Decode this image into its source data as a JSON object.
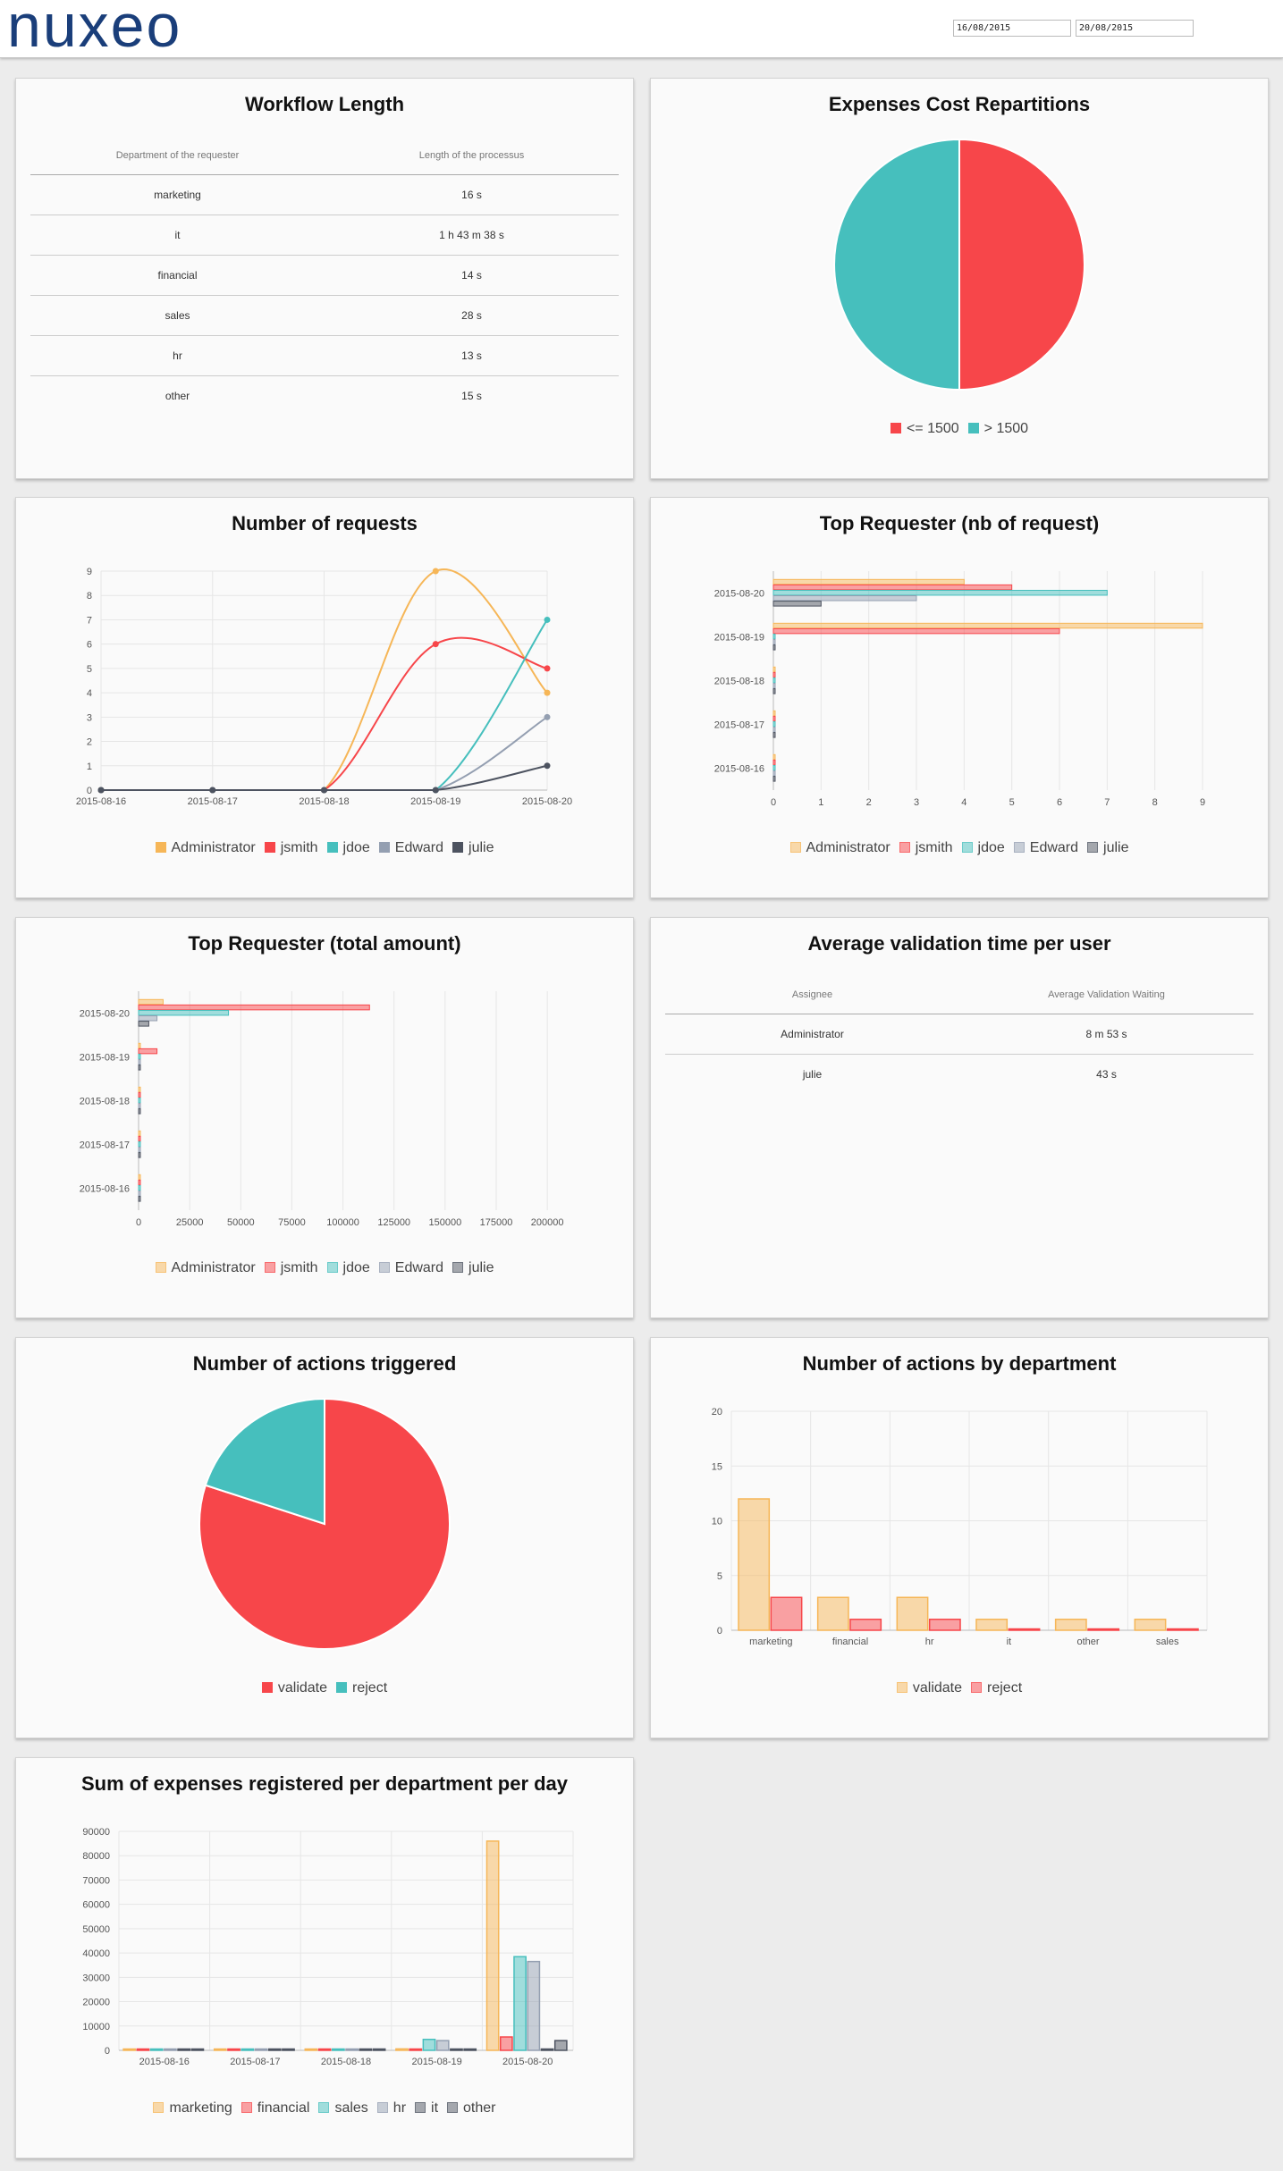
{
  "header": {
    "logo_text": "nuxeo",
    "date_from": "16/08/2015",
    "date_to": "20/08/2015"
  },
  "colors": {
    "orange": "#f6b657",
    "red": "#f7464a",
    "teal": "#46bfbd",
    "gray": "#949fb1",
    "dark": "#4d5360",
    "brand": "#1a3e7a"
  },
  "workflow_length": {
    "title": "Workflow Length",
    "columns": [
      "Department of the requester",
      "Length of the processus"
    ],
    "rows": [
      [
        "marketing",
        "16 s"
      ],
      [
        "it",
        "1 h 43 m 38 s"
      ],
      [
        "financial",
        "14 s"
      ],
      [
        "sales",
        "28 s"
      ],
      [
        "hr",
        "13 s"
      ],
      [
        "other",
        "15 s"
      ]
    ]
  },
  "avg_validation": {
    "title": "Average validation time per user",
    "columns": [
      "Assignee",
      "Average Validation Waiting"
    ],
    "rows": [
      [
        "Administrator",
        "8 m 53 s"
      ],
      [
        "julie",
        "43 s"
      ]
    ]
  },
  "chart_data": [
    {
      "id": "expenses_cost",
      "type": "pie",
      "title": "Expenses Cost Repartitions",
      "labels": [
        "<= 1500",
        "> 1500"
      ],
      "values": [
        50,
        50
      ],
      "colors": [
        "#f7464a",
        "#46bfbd"
      ],
      "legend": "bottom"
    },
    {
      "id": "nb_requests",
      "type": "line",
      "title": "Number of requests",
      "categories": [
        "2015-08-16",
        "2015-08-17",
        "2015-08-18",
        "2015-08-19",
        "2015-08-20"
      ],
      "ylim": [
        0,
        9
      ],
      "y_ticks": [
        0,
        1,
        2,
        3,
        4,
        5,
        6,
        7,
        8,
        9
      ],
      "series": [
        {
          "name": "Administrator",
          "values": [
            0,
            0,
            0,
            9,
            4
          ],
          "color": "#f6b657"
        },
        {
          "name": "jsmith",
          "values": [
            0,
            0,
            0,
            6,
            5
          ],
          "color": "#f7464a"
        },
        {
          "name": "jdoe",
          "values": [
            0,
            0,
            0,
            0,
            7
          ],
          "color": "#46bfbd"
        },
        {
          "name": "Edward",
          "values": [
            0,
            0,
            0,
            0,
            3
          ],
          "color": "#949fb1"
        },
        {
          "name": "julie",
          "values": [
            0,
            0,
            0,
            0,
            1
          ],
          "color": "#4d5360"
        }
      ],
      "grid": true,
      "legend": "bottom"
    },
    {
      "id": "top_req_nb",
      "type": "bar",
      "orientation": "horizontal",
      "title": "Top Requester (nb of request)",
      "categories": [
        "2015-08-20",
        "2015-08-19",
        "2015-08-18",
        "2015-08-17",
        "2015-08-16"
      ],
      "xlim": [
        0,
        9
      ],
      "x_ticks": [
        0,
        1,
        2,
        3,
        4,
        5,
        6,
        7,
        8,
        9
      ],
      "series": [
        {
          "name": "Administrator",
          "values": [
            4,
            9,
            0,
            0,
            0
          ],
          "color": "#f6b657"
        },
        {
          "name": "jsmith",
          "values": [
            5,
            6,
            0,
            0,
            0
          ],
          "color": "#f7464a"
        },
        {
          "name": "jdoe",
          "values": [
            7,
            0,
            0,
            0,
            0
          ],
          "color": "#46bfbd"
        },
        {
          "name": "Edward",
          "values": [
            3,
            0,
            0,
            0,
            0
          ],
          "color": "#949fb1"
        },
        {
          "name": "julie",
          "values": [
            1,
            0,
            0,
            0,
            0
          ],
          "color": "#4d5360"
        }
      ],
      "grid": true,
      "legend": "bottom"
    },
    {
      "id": "top_req_amount",
      "type": "bar",
      "orientation": "horizontal",
      "title": "Top Requester (total amount)",
      "categories": [
        "2015-08-20",
        "2015-08-19",
        "2015-08-18",
        "2015-08-17",
        "2015-08-16"
      ],
      "xlim": [
        0,
        210000
      ],
      "x_ticks": [
        0,
        25000,
        50000,
        75000,
        100000,
        125000,
        150000,
        175000,
        200000
      ],
      "series": [
        {
          "name": "Administrator",
          "values": [
            12000,
            500,
            0,
            0,
            0
          ],
          "color": "#f6b657"
        },
        {
          "name": "jsmith",
          "values": [
            113000,
            9000,
            0,
            0,
            0
          ],
          "color": "#f7464a"
        },
        {
          "name": "jdoe",
          "values": [
            44000,
            0,
            0,
            0,
            0
          ],
          "color": "#46bfbd"
        },
        {
          "name": "Edward",
          "values": [
            9000,
            0,
            0,
            0,
            0
          ],
          "color": "#949fb1"
        },
        {
          "name": "julie",
          "values": [
            5000,
            0,
            0,
            0,
            0
          ],
          "color": "#4d5360"
        }
      ],
      "grid": true,
      "legend": "bottom"
    },
    {
      "id": "actions_triggered",
      "type": "pie",
      "title": "Number of actions triggered",
      "labels": [
        "validate",
        "reject"
      ],
      "values": [
        20,
        5
      ],
      "colors": [
        "#f7464a",
        "#46bfbd"
      ],
      "legend": "bottom"
    },
    {
      "id": "actions_by_dept",
      "type": "bar",
      "title": "Number of actions by department",
      "categories": [
        "marketing",
        "financial",
        "hr",
        "it",
        "other",
        "sales"
      ],
      "ylim": [
        0,
        20
      ],
      "y_ticks": [
        0,
        5,
        10,
        15,
        20
      ],
      "series": [
        {
          "name": "validate",
          "values": [
            12,
            3,
            3,
            1,
            1,
            1
          ],
          "color": "#f6b657"
        },
        {
          "name": "reject",
          "values": [
            3,
            1,
            1,
            0,
            0,
            0
          ],
          "color": "#f7464a"
        }
      ],
      "grid": true,
      "legend": "bottom"
    },
    {
      "id": "expenses_per_dept",
      "type": "bar",
      "title": "Sum of expenses registered per department per day",
      "categories": [
        "2015-08-16",
        "2015-08-17",
        "2015-08-18",
        "2015-08-19",
        "2015-08-20"
      ],
      "ylim": [
        0,
        90000
      ],
      "y_ticks": [
        0,
        10000,
        20000,
        30000,
        40000,
        50000,
        60000,
        70000,
        80000,
        90000
      ],
      "series": [
        {
          "name": "marketing",
          "values": [
            0,
            0,
            0,
            600,
            86000
          ],
          "color": "#f6b657"
        },
        {
          "name": "financial",
          "values": [
            0,
            0,
            0,
            300,
            5500
          ],
          "color": "#f7464a"
        },
        {
          "name": "sales",
          "values": [
            0,
            0,
            0,
            4500,
            38500
          ],
          "color": "#46bfbd"
        },
        {
          "name": "hr",
          "values": [
            0,
            0,
            0,
            4000,
            36500
          ],
          "color": "#949fb1"
        },
        {
          "name": "it",
          "values": [
            0,
            0,
            0,
            500,
            300
          ],
          "color": "#4d5360"
        },
        {
          "name": "other",
          "values": [
            0,
            0,
            0,
            300,
            4000
          ],
          "color": "#4d5360"
        }
      ],
      "grid": true,
      "legend": "bottom"
    }
  ]
}
